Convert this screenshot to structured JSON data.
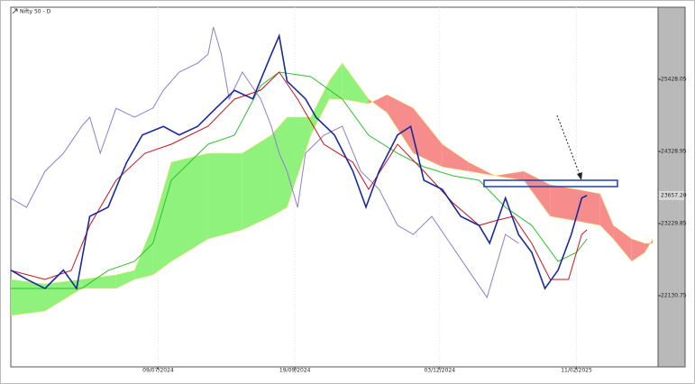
{
  "chart_data": {
    "type": "line",
    "title": "Nifty 50 - D",
    "xlim": [
      0,
      246
    ],
    "xticks": [
      {
        "value": 56,
        "label": "09/07/2024"
      },
      {
        "value": 108,
        "label": "19/09/2024"
      },
      {
        "value": 163,
        "label": "03/12/2024"
      },
      {
        "value": 215,
        "label": "11/02/2025"
      }
    ],
    "ylim": [
      21045.39,
      26527.15
    ],
    "yticks": [
      22130.75,
      23229.85,
      24328.95,
      25428.05
    ],
    "last_price": {
      "value": 23657.2,
      "label": "23657.20"
    },
    "grid": true,
    "series": [
      {
        "color": "#1a2a9c",
        "x": [
          0,
          6,
          13,
          20,
          25,
          30,
          37,
          44,
          50,
          58,
          64,
          71,
          78,
          85,
          92,
          99,
          102,
          105,
          112,
          116,
          123,
          130,
          135,
          140,
          147,
          152,
          157,
          164,
          171,
          178,
          182,
          188,
          193,
          198,
          203,
          208,
          213,
          217,
          219
        ],
        "values": [
          22520,
          22380,
          22240,
          22520,
          22240,
          23340,
          23480,
          24160,
          24580,
          24710,
          24580,
          24710,
          24990,
          25260,
          25130,
          25810,
          26090,
          25400,
          25130,
          24850,
          24580,
          24030,
          23480,
          24030,
          24580,
          24710,
          23890,
          23750,
          23340,
          23200,
          22930,
          23620,
          23060,
          22790,
          22240,
          22520,
          23060,
          23620,
          23657.2
        ]
      },
      {
        "color": "#c8141e",
        "x": [
          0,
          13,
          23,
          30,
          40,
          51,
          61,
          75,
          85,
          95,
          102,
          109,
          119,
          130,
          136,
          147,
          157,
          168,
          178,
          184,
          191,
          198,
          205,
          212,
          217,
          219
        ],
        "values": [
          22515,
          22378,
          22515,
          23202,
          23889,
          24301,
          24439,
          24714,
          25126,
          25263,
          25538,
          25126,
          24439,
          24164,
          23752,
          24439,
          24027,
          23546,
          23202,
          23271,
          23340,
          22928,
          22378,
          22378,
          23065,
          23134
        ]
      },
      {
        "color": "#2fbf2f",
        "x": [
          0,
          13,
          27,
          37,
          47,
          54,
          61,
          75,
          85,
          95,
          102,
          114,
          126,
          136,
          147,
          157,
          168,
          178,
          188,
          198,
          208,
          215,
          219
        ],
        "values": [
          22241,
          22241,
          22241,
          22515,
          22653,
          22928,
          23889,
          24439,
          24576,
          25332,
          25538,
          25469,
          25126,
          24576,
          24301,
          24095,
          23958,
          23889,
          23477,
          23202,
          22653,
          22790,
          22996
        ]
      },
      {
        "color": "#8c7fd0",
        "x": [
          0,
          6,
          13,
          20,
          27,
          30,
          34,
          40,
          47,
          54,
          58,
          64,
          71,
          75,
          77,
          80,
          83,
          88,
          95,
          99,
          102,
          105,
          109,
          112,
          119,
          126,
          133,
          140,
          147,
          153,
          160,
          167,
          174,
          181,
          188,
          193
        ],
        "values": [
          23615,
          23477,
          24027,
          24301,
          24714,
          24851,
          24301,
          24988,
          24851,
          24988,
          25263,
          25538,
          25675,
          25813,
          26225,
          25813,
          25126,
          25538,
          25126,
          24714,
          24301,
          24027,
          23477,
          24301,
          24576,
          24714,
          24027,
          23752,
          23202,
          23065,
          23340,
          22928,
          22515,
          22104,
          23065,
          22928
        ]
      }
    ],
    "cloud": {
      "bull_color": "#8ef27c",
      "bear_color": "#f78c8c",
      "x": [
        0,
        13,
        27,
        40,
        47,
        54,
        61,
        75,
        88,
        99,
        105,
        114,
        121,
        126,
        136,
        143,
        153,
        164,
        174,
        184,
        195,
        205,
        215,
        224,
        229,
        236,
        241,
        244
      ],
      "span_a": [
        22378,
        22309,
        22378,
        22447,
        22515,
        23202,
        24164,
        24301,
        24301,
        24576,
        24851,
        24851,
        25401,
        25675,
        25126,
        24920,
        24301,
        24095,
        24027,
        23958,
        23889,
        23340,
        23271,
        23202,
        22996,
        22653,
        22790,
        22996
      ],
      "span_b": [
        21829,
        21897,
        22241,
        22241,
        22378,
        22447,
        22653,
        22996,
        23134,
        23340,
        23477,
        24576,
        25126,
        25126,
        25057,
        25194,
        24988,
        24439,
        24164,
        23958,
        24027,
        23821,
        23752,
        23683,
        23202,
        22996,
        22928,
        22928
      ]
    }
  }
}
